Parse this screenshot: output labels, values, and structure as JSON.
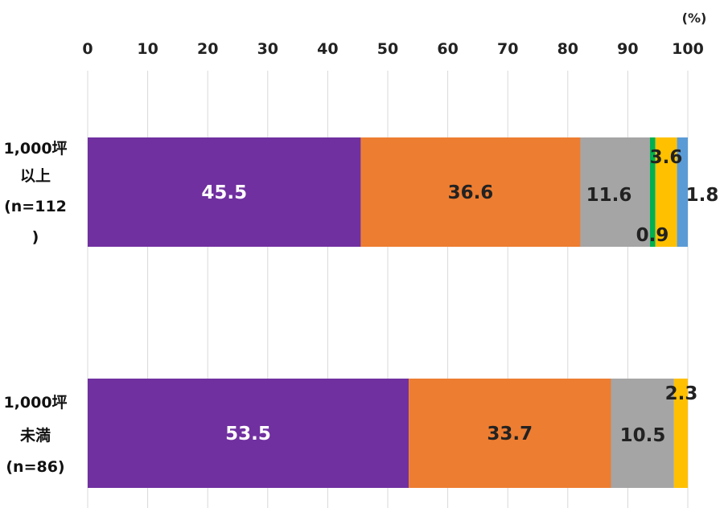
{
  "chart_data": {
    "type": "bar",
    "orientation": "horizontal",
    "stacked": true,
    "unit": "(%)",
    "xlim": [
      0,
      100
    ],
    "x_ticks": [
      "0",
      "10",
      "20",
      "30",
      "40",
      "50",
      "60",
      "70",
      "80",
      "90",
      "100"
    ],
    "categories": [
      {
        "lines": [
          "1,000坪",
          "以上",
          "(n=112",
          ")"
        ]
      },
      {
        "lines": [
          "1,000坪",
          "未満",
          "(n=86)"
        ]
      }
    ],
    "series": [
      {
        "color": "#7030A0",
        "values": [
          45.5,
          53.5
        ],
        "labels": [
          "45.5",
          "53.5"
        ],
        "label_color": "#ffffff"
      },
      {
        "color": "#ED7D31",
        "values": [
          36.6,
          33.7
        ],
        "labels": [
          "36.6",
          "33.7"
        ],
        "label_color": "#222222"
      },
      {
        "color": "#A5A5A5",
        "values": [
          11.6,
          10.5
        ],
        "labels": [
          "11.6",
          "10.5"
        ],
        "label_color": "#222222"
      },
      {
        "color": "#00B050",
        "values": [
          0.9,
          0
        ],
        "labels": [
          "0.9",
          ""
        ],
        "label_color": "#222222"
      },
      {
        "color": "#FFC000",
        "values": [
          3.6,
          2.3
        ],
        "labels": [
          "3.6",
          "2.3"
        ],
        "label_color": "#222222"
      },
      {
        "color": "#5B9BD5",
        "values": [
          1.8,
          0
        ],
        "labels": [
          "1.8",
          ""
        ],
        "label_color": "#222222"
      }
    ],
    "grid": true,
    "legend": "none"
  }
}
